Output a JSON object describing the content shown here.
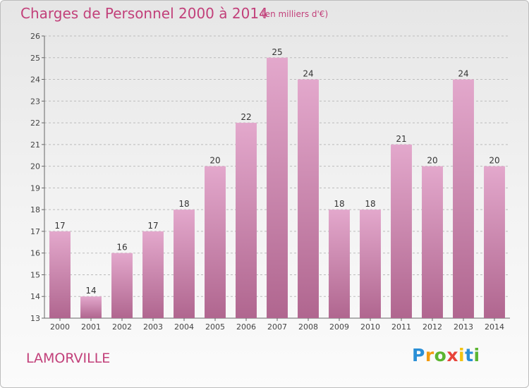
{
  "chart_data": {
    "type": "bar",
    "title": "Charges de Personnel 2000 à 2014",
    "subtitle": "(en milliers d'€)",
    "categories": [
      "2000",
      "2001",
      "2002",
      "2003",
      "2004",
      "2005",
      "2006",
      "2007",
      "2008",
      "2009",
      "2010",
      "2011",
      "2012",
      "2013",
      "2014"
    ],
    "values": [
      17,
      14,
      16,
      17,
      18,
      20,
      22,
      25,
      24,
      18,
      18,
      21,
      20,
      24,
      20
    ],
    "ylim": [
      13,
      26
    ],
    "yticks": [
      13,
      14,
      15,
      16,
      17,
      18,
      19,
      20,
      21,
      22,
      23,
      24,
      25,
      26
    ],
    "grid": true,
    "bar_color_top": "#e3a8cc",
    "bar_color_bottom": "#b0668f"
  },
  "commune": "LAMORVILLE",
  "logo": {
    "letters": [
      "P",
      "r",
      "o",
      "x",
      "i",
      "t",
      "i"
    ],
    "colors": [
      "#2a8fd6",
      "#f29b11",
      "#5cb531",
      "#e8443a",
      "#f2c311",
      "#2a8fd6",
      "#5cb531"
    ]
  }
}
